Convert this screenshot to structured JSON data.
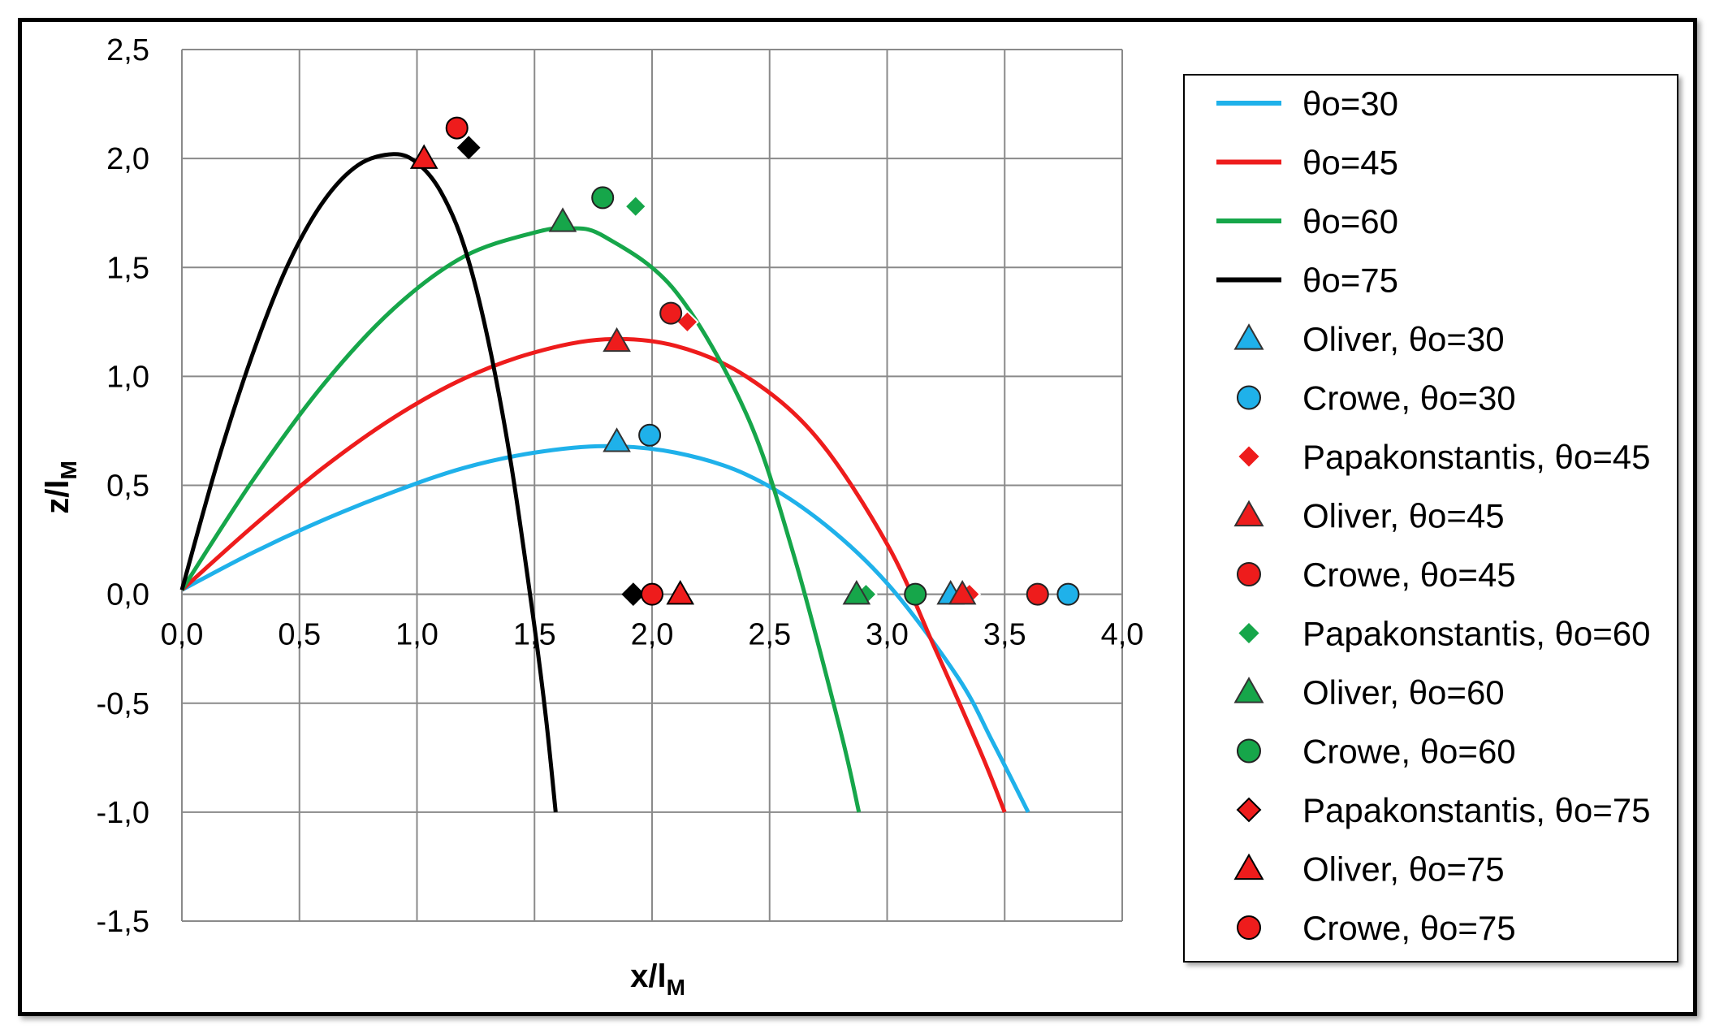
{
  "chart_data": {
    "type": "scatter",
    "title": "",
    "xlabel": "x/l",
    "xlabel_sub": "M",
    "ylabel": "z/l",
    "ylabel_sub": "M",
    "xlim": [
      0,
      4
    ],
    "ylim": [
      -1.5,
      2.5
    ],
    "xticks": [
      0,
      0.5,
      1,
      1.5,
      2,
      2.5,
      3,
      3.5,
      4
    ],
    "yticks": [
      -1.5,
      -1,
      -0.5,
      0,
      0.5,
      1,
      1.5,
      2,
      2.5
    ],
    "xtick_labels": [
      "0,0",
      "0,5",
      "1,0",
      "1,5",
      "2,0",
      "2,5",
      "3,0",
      "3,5",
      "4,0"
    ],
    "ytick_labels": [
      "-1,5",
      "-1,0",
      "-0,5",
      "0,0",
      "0,5",
      "1,0",
      "1,5",
      "2,0",
      "2,5"
    ],
    "grid": true,
    "legend_position": "right",
    "colors": {
      "blue": "#1fb1ea",
      "red": "#ee1c1c",
      "green": "#16a64a",
      "black": "#000000"
    },
    "lines": [
      {
        "name": "θo=30",
        "color": "#1fb1ea",
        "x": [
          0,
          0.3,
          0.6,
          0.9,
          1.2,
          1.5,
          1.8,
          2.1,
          2.4,
          2.7,
          3.0,
          3.3,
          3.45,
          3.6
        ],
        "y": [
          0.02,
          0.19,
          0.34,
          0.47,
          0.58,
          0.65,
          0.68,
          0.65,
          0.55,
          0.35,
          0.05,
          -0.38,
          -0.68,
          -1.0
        ]
      },
      {
        "name": "θo=45",
        "color": "#ee1c1c",
        "x": [
          0,
          0.3,
          0.6,
          0.9,
          1.2,
          1.5,
          1.8,
          2.1,
          2.4,
          2.7,
          3.0,
          3.2,
          3.4,
          3.5
        ],
        "y": [
          0.02,
          0.31,
          0.58,
          0.81,
          0.99,
          1.11,
          1.17,
          1.14,
          1.0,
          0.72,
          0.23,
          -0.24,
          -0.73,
          -1.0
        ]
      },
      {
        "name": "θo=60",
        "color": "#16a64a",
        "x": [
          0,
          0.3,
          0.6,
          0.9,
          1.2,
          1.5,
          1.65,
          1.8,
          2.1,
          2.4,
          2.6,
          2.8,
          2.88
        ],
        "y": [
          0.02,
          0.52,
          0.96,
          1.31,
          1.55,
          1.66,
          1.68,
          1.64,
          1.39,
          0.83,
          0.19,
          -0.62,
          -1.0
        ]
      },
      {
        "name": "θo=75",
        "color": "#000000",
        "x": [
          0,
          0.15,
          0.3,
          0.45,
          0.6,
          0.75,
          0.9,
          1.0,
          1.1,
          1.2,
          1.3,
          1.4,
          1.5,
          1.55,
          1.59
        ],
        "y": [
          0.02,
          0.6,
          1.1,
          1.51,
          1.8,
          1.97,
          2.02,
          1.98,
          1.85,
          1.6,
          1.18,
          0.6,
          -0.15,
          -0.58,
          -1.0
        ]
      }
    ],
    "series": [
      {
        "name": "Oliver, θo=30",
        "marker": "triangle",
        "color": "#1fb1ea",
        "x": [
          1.85,
          3.27
        ],
        "y": [
          0.7,
          0.0
        ]
      },
      {
        "name": "Crowe, θo=30",
        "marker": "circle",
        "color": "#1fb1ea",
        "x": [
          1.99,
          3.77
        ],
        "y": [
          0.73,
          0.0
        ]
      },
      {
        "name": "Papakonstantis, θo=45",
        "marker": "diamond",
        "color": "#ee1c1c",
        "x": [
          2.15,
          3.35
        ],
        "y": [
          1.25,
          0.0
        ]
      },
      {
        "name": "Oliver, θo=45",
        "marker": "triangle",
        "color": "#ee1c1c",
        "x": [
          1.85,
          3.32
        ],
        "y": [
          1.16,
          0.0
        ]
      },
      {
        "name": "Crowe, θo=45",
        "marker": "circle",
        "color": "#ee1c1c",
        "x": [
          2.08,
          3.64
        ],
        "y": [
          1.29,
          0.0
        ]
      },
      {
        "name": "Papakonstantis, θo=60",
        "marker": "diamond",
        "color": "#16a64a",
        "x": [
          1.93,
          2.91
        ],
        "y": [
          1.78,
          0.0
        ]
      },
      {
        "name": "Oliver, θo=60",
        "marker": "triangle",
        "color": "#16a64a",
        "x": [
          1.62,
          2.87
        ],
        "y": [
          1.71,
          0.0
        ]
      },
      {
        "name": "Crowe, θo=60",
        "marker": "circle",
        "color": "#16a64a",
        "x": [
          1.79,
          3.12
        ],
        "y": [
          1.82,
          0.0
        ]
      },
      {
        "name": "Papakonstantis, θo=75",
        "marker": "diamond",
        "color": "#000000",
        "x": [
          1.22,
          1.92
        ],
        "y": [
          2.05,
          0.0
        ]
      },
      {
        "name": "Oliver, θo=75",
        "marker": "triangle",
        "color": "#000000",
        "x": [
          1.03,
          2.12
        ],
        "y": [
          2.0,
          0.0
        ]
      },
      {
        "name": "Crowe, θo=75",
        "marker": "circle",
        "color": "#000000",
        "x": [
          1.17,
          2.0
        ],
        "y": [
          2.14,
          0.0
        ]
      }
    ],
    "legend": [
      {
        "label": "θo=30",
        "kind": "line",
        "color": "#1fb1ea"
      },
      {
        "label": "θo=45",
        "kind": "line",
        "color": "#ee1c1c"
      },
      {
        "label": "θo=60",
        "kind": "line",
        "color": "#16a64a"
      },
      {
        "label": "θo=75",
        "kind": "line",
        "color": "#000000"
      },
      {
        "label": "Oliver, θo=30",
        "kind": "triangle",
        "fill": "#1fb1ea",
        "stroke": "#1fb1ea"
      },
      {
        "label": "Crowe, θo=30",
        "kind": "circle",
        "fill": "#1fb1ea",
        "stroke": "#1fb1ea"
      },
      {
        "label": "Papakonstantis, θo=45",
        "kind": "diamond",
        "fill": "#ee1c1c",
        "stroke": "#ee1c1c"
      },
      {
        "label": "Oliver, θo=45",
        "kind": "triangle",
        "fill": "#ee1c1c",
        "stroke": "#ee1c1c"
      },
      {
        "label": "Crowe, θo=45",
        "kind": "circle",
        "fill": "#ee1c1c",
        "stroke": "#ee1c1c"
      },
      {
        "label": "Papakonstantis, θo=60",
        "kind": "diamond",
        "fill": "#16a64a",
        "stroke": "#16a64a"
      },
      {
        "label": "Oliver, θo=60",
        "kind": "triangle",
        "fill": "#16a64a",
        "stroke": "#16a64a"
      },
      {
        "label": "Crowe, θo=60",
        "kind": "circle",
        "fill": "#16a64a",
        "stroke": "#16a64a"
      },
      {
        "label": "Papakonstantis, θo=75",
        "kind": "diamond",
        "fill": "#ee1c1c",
        "stroke": "#000000"
      },
      {
        "label": "Oliver, θo=75",
        "kind": "triangle",
        "fill": "#ee1c1c",
        "stroke": "#000000"
      },
      {
        "label": "Crowe, θo=75",
        "kind": "circle",
        "fill": "#ee1c1c",
        "stroke": "#000000"
      }
    ]
  }
}
